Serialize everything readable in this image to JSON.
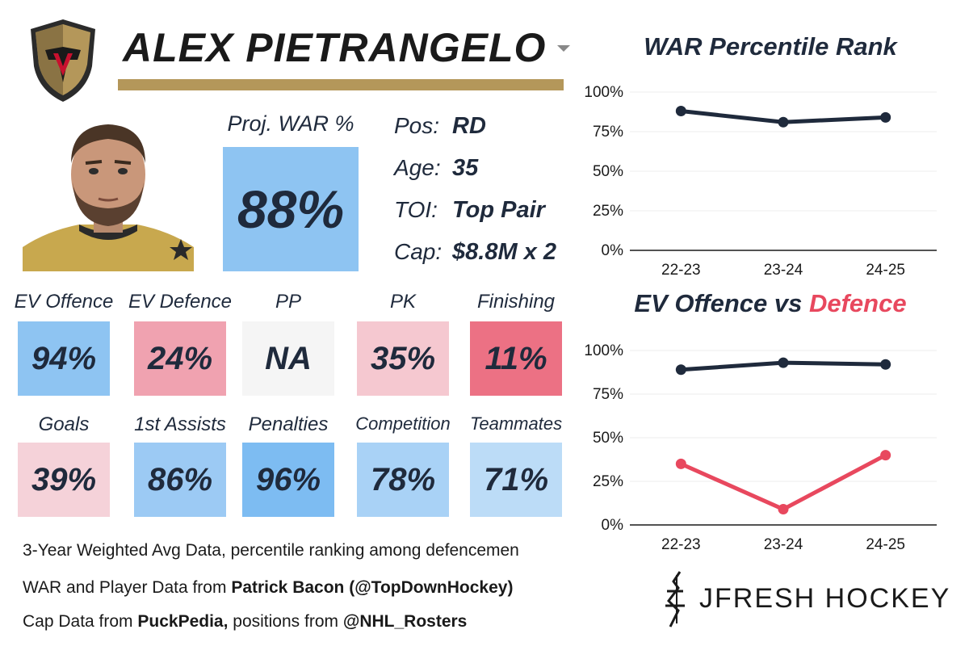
{
  "player": {
    "name": "ALEX PIETRANGELO",
    "proj_war_label": "Proj. WAR %",
    "proj_war_value": "88%",
    "info": [
      {
        "key": "Pos:",
        "value": "RD"
      },
      {
        "key": "Age:",
        "value": "35"
      },
      {
        "key": "TOI:",
        "value": "Top Pair"
      },
      {
        "key": "Cap:",
        "value": "$8.8M x 2"
      }
    ]
  },
  "stats": [
    {
      "label": "EV Offence",
      "value": "94%",
      "color": "#8ec4f2"
    },
    {
      "label": "EV Defence",
      "value": "24%",
      "color": "#f0a2b0"
    },
    {
      "label": "PP",
      "value": "NA",
      "color": "#f5f5f5"
    },
    {
      "label": "PK",
      "value": "35%",
      "color": "#f5c8d0"
    },
    {
      "label": "Finishing",
      "value": "11%",
      "color": "#ec7184"
    },
    {
      "label": "Goals",
      "value": "39%",
      "color": "#f5d2d9"
    },
    {
      "label": "1st Assists",
      "value": "86%",
      "color": "#9ccaf4"
    },
    {
      "label": "Penalties",
      "value": "96%",
      "color": "#7dbcf2"
    },
    {
      "label": "Competition",
      "value": "78%",
      "color": "#a9d2f6"
    },
    {
      "label": "Teammates",
      "value": "71%",
      "color": "#bcdcf7"
    }
  ],
  "footnotes": {
    "line1": "3-Year Weighted Avg Data, percentile ranking among defencemen",
    "line2_pre": "WAR and Player Data from ",
    "line2_bold": "Patrick Bacon (@TopDownHockey)",
    "line3_pre": "Cap Data from ",
    "line3_bold1": "PuckPedia,",
    "line3_mid": " positions from ",
    "line3_bold2": "@NHL_Rosters"
  },
  "brand": "JFRESH HOCKEY",
  "colors": {
    "navy": "#1f2a3c",
    "red": "#e8485e",
    "gold": "#b4975a"
  },
  "chart_data": [
    {
      "type": "line",
      "title": "WAR Percentile Rank",
      "categories": [
        "22-23",
        "23-24",
        "24-25"
      ],
      "y_ticks": [
        "0%",
        "25%",
        "50%",
        "75%",
        "100%"
      ],
      "ylim": [
        0,
        100
      ],
      "grid": true,
      "series": [
        {
          "values": [
            88,
            81,
            84
          ],
          "color": "#1f2a3c"
        }
      ]
    },
    {
      "type": "line",
      "title_part1": "EV Offence",
      "title_part2": " vs ",
      "title_part3": "Defence",
      "categories": [
        "22-23",
        "23-24",
        "24-25"
      ],
      "y_ticks": [
        "0%",
        "25%",
        "50%",
        "75%",
        "100%"
      ],
      "ylim": [
        0,
        100
      ],
      "grid": true,
      "series": [
        {
          "values": [
            89,
            93,
            92
          ],
          "color": "#1f2a3c"
        },
        {
          "values": [
            35,
            9,
            40
          ],
          "color": "#e8485e"
        }
      ]
    }
  ]
}
